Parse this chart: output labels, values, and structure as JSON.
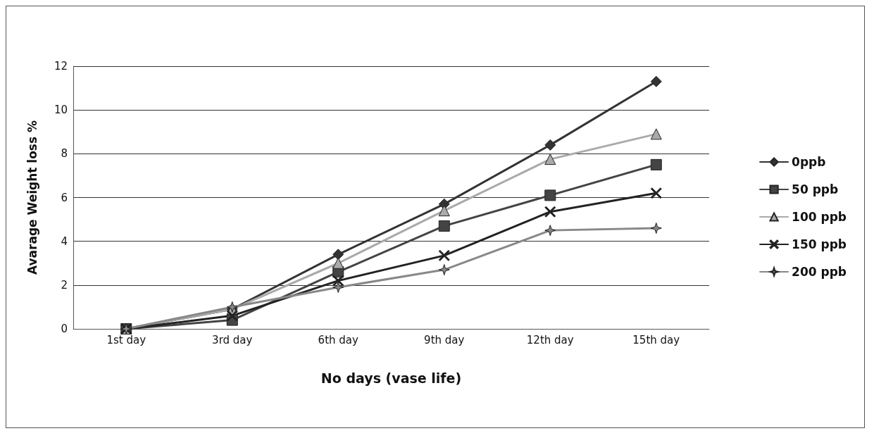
{
  "chart_data": {
    "type": "line",
    "xlabel": "No days (vase life)",
    "ylabel": "Avarage Weight loss %",
    "categories": [
      "1st day",
      "3rd day",
      "6th day",
      "9th day",
      "12th day",
      "15th day"
    ],
    "ylim": [
      0,
      12
    ],
    "yticks": [
      0,
      2,
      4,
      6,
      8,
      10,
      12
    ],
    "grid": "y",
    "legend": "right",
    "line_style": "solid",
    "series": [
      {
        "name": "0ppb",
        "color": "#333333",
        "marker": "diamond",
        "values": [
          0,
          0.9,
          3.4,
          5.7,
          8.4,
          11.3
        ]
      },
      {
        "name": "50 ppb",
        "color": "#444444",
        "marker": "square",
        "values": [
          0,
          0.4,
          2.6,
          4.7,
          6.1,
          7.5
        ]
      },
      {
        "name": "100 ppb",
        "color": "#aaaaaa",
        "marker": "triangle",
        "values": [
          0,
          0.9,
          3.0,
          5.4,
          7.75,
          8.9
        ]
      },
      {
        "name": "150 ppb",
        "color": "#222222",
        "marker": "cross",
        "values": [
          0,
          0.6,
          2.2,
          3.35,
          5.35,
          6.2
        ]
      },
      {
        "name": "200 ppb",
        "color": "#888888",
        "marker": "star",
        "values": [
          0,
          1.0,
          1.9,
          2.7,
          4.5,
          4.6
        ]
      }
    ]
  }
}
